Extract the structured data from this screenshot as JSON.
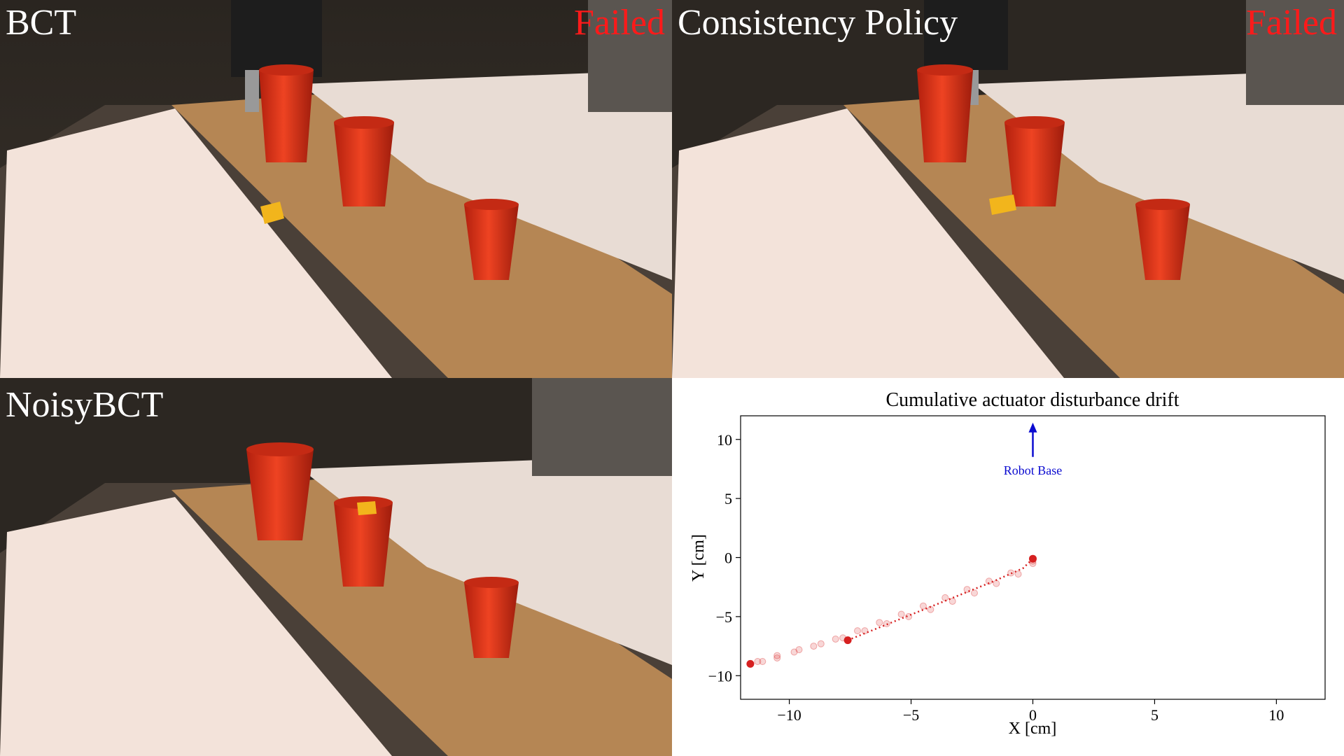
{
  "panels": {
    "top_left": {
      "title": "BCT",
      "status": "Failed"
    },
    "top_right": {
      "title": "Consistency Policy",
      "status": "Failed"
    },
    "bottom_left": {
      "title": "NoisyBCT",
      "status": ""
    }
  },
  "colors": {
    "failed": "#ff1a1a",
    "cup": "#e0341c",
    "cube": "#f2b51c",
    "table": "#f1e2d8",
    "wood": "#b98a57",
    "trajectory": "#d62020",
    "arrow": "#0a0ad0"
  },
  "icons": [
    "robot-gripper-icon",
    "cup-icon",
    "cube-icon"
  ],
  "chart_data": {
    "type": "scatter",
    "title": "Cumulative actuator disturbance drift",
    "xlabel": "X [cm]",
    "ylabel": "Y [cm]",
    "xlim": [
      -12,
      12
    ],
    "ylim": [
      -12,
      12
    ],
    "xticks": [
      -10,
      -5,
      0,
      5,
      10
    ],
    "yticks": [
      -10,
      -5,
      0,
      5,
      10
    ],
    "xtick_labels": [
      "−10",
      "−5",
      "0",
      "5",
      "10"
    ],
    "ytick_labels": [
      "−10",
      "−5",
      "0",
      "5",
      "10"
    ],
    "grid": false,
    "annotation": {
      "text": "Robot Base",
      "x": 0,
      "y": 10
    },
    "series": [
      {
        "x": [
          0,
          -0.9,
          -1.8,
          -2.7,
          -3.6,
          -4.5,
          -5.4,
          -6.3,
          -7.2,
          -8.1,
          -9.0,
          -9.8,
          -10.5,
          -11.1,
          -11.6,
          -11.3,
          -10.5,
          -9.6,
          -8.7,
          -7.8,
          -6.9,
          -6.0,
          -5.1,
          -4.2,
          -3.3,
          -2.4,
          -1.5,
          -0.6,
          0
        ],
        "y": [
          -0.5,
          -1.3,
          -2.0,
          -2.7,
          -3.4,
          -4.1,
          -4.8,
          -5.5,
          -6.2,
          -6.9,
          -7.5,
          -8.0,
          -8.5,
          -8.8,
          -9.0,
          -8.8,
          -8.3,
          -7.8,
          -7.3,
          -6.8,
          -6.2,
          -5.6,
          -5.0,
          -4.4,
          -3.7,
          -3.0,
          -2.2,
          -1.4,
          -0.3
        ]
      },
      {
        "x": [
          -7.6,
          -6.4,
          -5.2,
          -4.0,
          -2.8,
          -1.6,
          -0.4,
          0
        ],
        "y": [
          -7.0,
          -6.0,
          -5.0,
          -4.0,
          -3.0,
          -2.0,
          -0.9,
          -0.1
        ]
      },
      {
        "x": [
          -7.6,
          -11.6,
          0
        ],
        "y": [
          -7.0,
          -9.0,
          -0.1
        ]
      }
    ]
  }
}
